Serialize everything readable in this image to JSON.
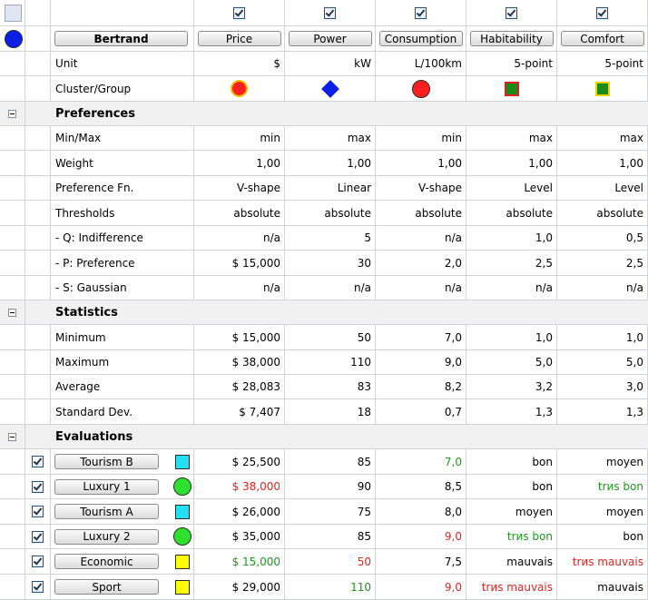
{
  "header": {
    "scenario_name": "Bertrand",
    "criteria": [
      "Price",
      "Power",
      "Consumption",
      "Habitability",
      "Comfort"
    ],
    "unit_label": "Unit",
    "units": [
      "$",
      "kW",
      "L/100km",
      "5-point",
      "5-point"
    ],
    "cluster_label": "Cluster/Group",
    "cluster_icons": [
      "red-circle-yellow-border",
      "blue-diamond",
      "red-circle",
      "green-square-red-border",
      "green-square-yellow-border"
    ]
  },
  "preferences": {
    "title": "Preferences",
    "rows": [
      {
        "label": "Min/Max",
        "values": [
          "min",
          "max",
          "min",
          "max",
          "max"
        ]
      },
      {
        "label": "Weight",
        "values": [
          "1,00",
          "1,00",
          "1,00",
          "1,00",
          "1,00"
        ]
      },
      {
        "label": "Preference Fn.",
        "values": [
          "V-shape",
          "Linear",
          "V-shape",
          "Level",
          "Level"
        ]
      },
      {
        "label": "Thresholds",
        "values": [
          "absolute",
          "absolute",
          "absolute",
          "absolute",
          "absolute"
        ]
      },
      {
        "label": "- Q: Indifference",
        "values": [
          "n/a",
          "5",
          "n/a",
          "1,0",
          "0,5"
        ]
      },
      {
        "label": "- P: Preference",
        "values": [
          "$ 15,000",
          "30",
          "2,0",
          "2,5",
          "2,5"
        ]
      },
      {
        "label": "- S: Gaussian",
        "values": [
          "n/a",
          "n/a",
          "n/a",
          "n/a",
          "n/a"
        ]
      }
    ]
  },
  "statistics": {
    "title": "Statistics",
    "rows": [
      {
        "label": "Minimum",
        "values": [
          "$ 15,000",
          "50",
          "7,0",
          "1,0",
          "1,0"
        ]
      },
      {
        "label": "Maximum",
        "values": [
          "$ 38,000",
          "110",
          "9,0",
          "5,0",
          "5,0"
        ]
      },
      {
        "label": "Average",
        "values": [
          "$ 28,083",
          "83",
          "8,2",
          "3,2",
          "3,0"
        ]
      },
      {
        "label": "Standard Dev.",
        "values": [
          "$ 7,407",
          "18",
          "0,7",
          "1,3",
          "1,3"
        ]
      }
    ]
  },
  "evaluations": {
    "title": "Evaluations",
    "rows": [
      {
        "name": "Tourism B",
        "icon": "cyan-square",
        "values": [
          "$ 25,500",
          "85",
          "7,0",
          "bon",
          "moyen"
        ]
      },
      {
        "name": "Luxury 1",
        "icon": "green-circle",
        "values": [
          "$ 38,000",
          "90",
          "8,5",
          "bon",
          "trиs bon"
        ]
      },
      {
        "name": "Tourism A",
        "icon": "cyan-square",
        "values": [
          "$ 26,000",
          "75",
          "8,0",
          "moyen",
          "moyen"
        ]
      },
      {
        "name": "Luxury 2",
        "icon": "green-circle",
        "values": [
          "$ 35,000",
          "85",
          "9,0",
          "trиs bon",
          "bon"
        ]
      },
      {
        "name": "Economic",
        "icon": "yellow-square",
        "values": [
          "$ 15,000",
          "50",
          "7,5",
          "mauvais",
          "trиs mauvais"
        ]
      },
      {
        "name": "Sport",
        "icon": "yellow-square",
        "values": [
          "$ 29,000",
          "110",
          "9,0",
          "trиs mauvais",
          "mauvais"
        ]
      }
    ]
  },
  "colors": {
    "best": "#1a9a1a",
    "worst": "#e8201c",
    "grid": "#cfd3da",
    "section_bg": "#f1f1f1"
  }
}
